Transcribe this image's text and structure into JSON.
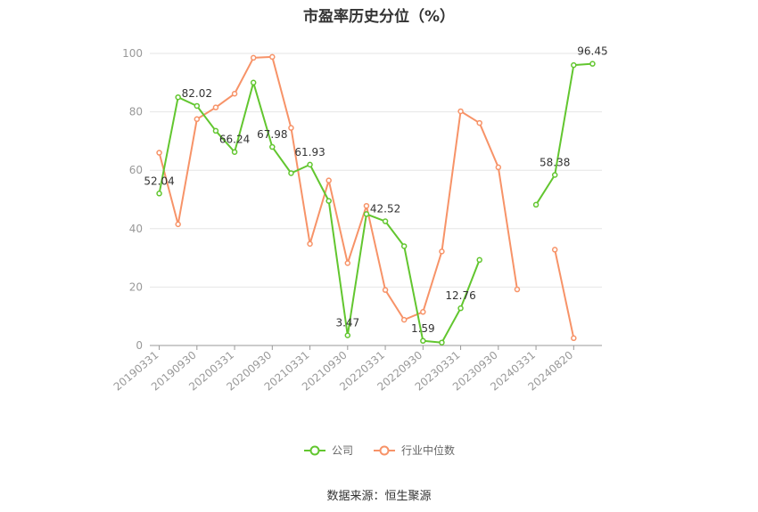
{
  "title": "市盈率历史分位（%）",
  "source": "数据来源：恒生聚源",
  "colors": {
    "company": "#62c62f",
    "industry": "#f79368",
    "grid": "#e6e6e6",
    "axis": "#999999"
  },
  "chart_data": {
    "type": "line",
    "title": "市盈率历史分位（%）",
    "ylim": [
      0,
      100
    ],
    "yticks": [
      0,
      20,
      40,
      60,
      80,
      100
    ],
    "xtick_labels": [
      "20190331",
      "20190930",
      "20200331",
      "20200930",
      "20210331",
      "20210930",
      "20220331",
      "20220930",
      "20230331",
      "20230930",
      "20240331",
      "20240820"
    ],
    "legend_position": "bottom",
    "grid": true,
    "series": [
      {
        "name": "公司",
        "color": "#62c62f",
        "values": [
          52.04,
          85,
          82.02,
          73.5,
          66.24,
          90,
          67.98,
          59,
          61.93,
          49.5,
          3.47,
          45,
          42.52,
          34,
          1.59,
          1.0,
          12.76,
          29.3,
          null,
          null,
          48.2,
          58.38,
          96,
          96.45
        ],
        "labeled_indices": [
          0,
          2,
          4,
          6,
          8,
          10,
          12,
          14,
          16,
          21,
          23
        ],
        "labels": [
          "52.04",
          "82.02",
          "66.24",
          "67.98",
          "61.93",
          "3.47",
          "42.52",
          "1.59",
          "12.76",
          "58.38",
          "96.45"
        ]
      },
      {
        "name": "行业中位数",
        "color": "#f79368",
        "values": [
          66,
          41.5,
          77.5,
          81.5,
          86.2,
          98.5,
          98.8,
          74.5,
          34.8,
          56.5,
          28.2,
          47.8,
          19,
          8.8,
          11.5,
          32.2,
          80.2,
          76.2,
          61,
          19.2,
          null,
          32.8,
          2.5,
          null
        ]
      }
    ]
  }
}
